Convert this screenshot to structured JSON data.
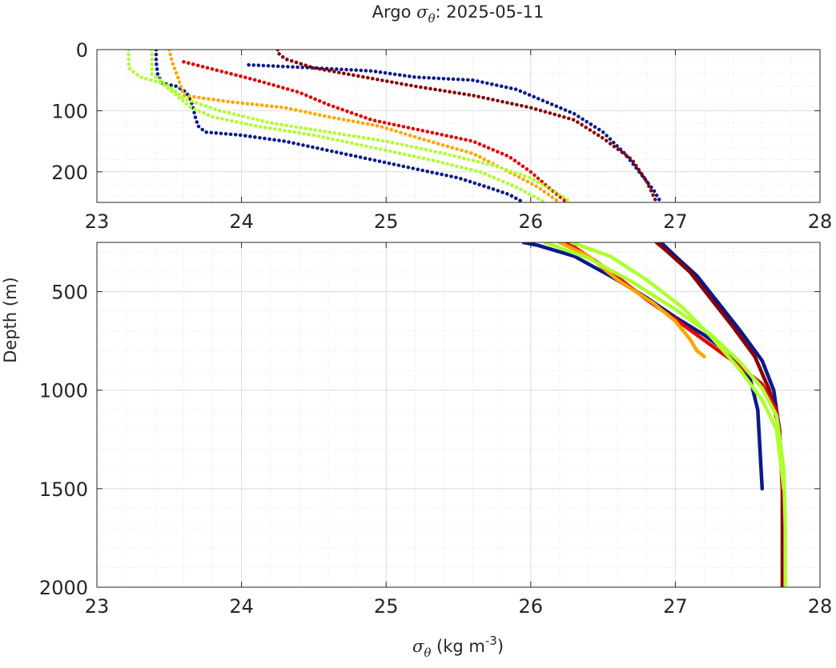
{
  "chart_data": {
    "type": "scatter",
    "title": {
      "prefix": "Argo ",
      "symbol": "σ",
      "subscript": "θ",
      "suffix": ": 2025-05-11"
    },
    "xlabel": {
      "symbol": "σ",
      "subscript": "θ",
      "text": " (kg m",
      "superscript": "-3",
      "close": ")"
    },
    "ylabel": "Depth (m)",
    "grid": true,
    "panels": [
      {
        "name": "upper",
        "xlim": [
          23,
          28
        ],
        "ylim": [
          0,
          250
        ],
        "y_reversed": true,
        "xticks": [
          "23",
          "24",
          "25",
          "26",
          "27",
          "28"
        ],
        "yticks": [
          "0",
          "100",
          "200"
        ]
      },
      {
        "name": "lower",
        "xlim": [
          23,
          28
        ],
        "ylim": [
          250,
          2000
        ],
        "y_reversed": true,
        "xticks": [
          "23",
          "24",
          "25",
          "26",
          "27",
          "28"
        ],
        "yticks": [
          "500",
          "1000",
          "1500",
          "2000"
        ]
      }
    ],
    "series": [
      {
        "color": "#0a1a8c",
        "points": [
          [
            23.41,
            0
          ],
          [
            23.41,
            20
          ],
          [
            23.42,
            40
          ],
          [
            23.45,
            55
          ],
          [
            23.55,
            60
          ],
          [
            23.62,
            70
          ],
          [
            23.66,
            90
          ],
          [
            23.68,
            110
          ],
          [
            23.7,
            125
          ],
          [
            23.75,
            135
          ],
          [
            24.0,
            140
          ],
          [
            24.3,
            150
          ],
          [
            24.6,
            165
          ],
          [
            24.9,
            180
          ],
          [
            25.2,
            195
          ],
          [
            25.5,
            210
          ],
          [
            25.7,
            225
          ],
          [
            25.85,
            237
          ],
          [
            25.95,
            250
          ]
        ]
      },
      {
        "color": "#0a1a8c",
        "points": [
          [
            25.95,
            250
          ],
          [
            26.05,
            265
          ],
          [
            26.3,
            320
          ],
          [
            26.55,
            420
          ],
          [
            26.8,
            530
          ],
          [
            27.0,
            630
          ],
          [
            27.2,
            720
          ],
          [
            27.4,
            830
          ],
          [
            27.52,
            950
          ],
          [
            27.57,
            1100
          ],
          [
            27.6,
            1500
          ]
        ]
      },
      {
        "color": "#0a1a8c",
        "points": [
          [
            24.05,
            25
          ],
          [
            24.5,
            30
          ],
          [
            24.9,
            35
          ],
          [
            25.2,
            45
          ],
          [
            25.6,
            50
          ],
          [
            25.9,
            65
          ],
          [
            26.1,
            85
          ],
          [
            26.3,
            105
          ],
          [
            26.5,
            135
          ],
          [
            26.65,
            170
          ],
          [
            26.75,
            200
          ],
          [
            26.85,
            230
          ],
          [
            26.9,
            250
          ]
        ]
      },
      {
        "color": "#0a1a8c",
        "points": [
          [
            26.9,
            250
          ],
          [
            27.0,
            320
          ],
          [
            27.15,
            420
          ],
          [
            27.3,
            560
          ],
          [
            27.45,
            700
          ],
          [
            27.6,
            850
          ],
          [
            27.68,
            1000
          ],
          [
            27.72,
            1200
          ],
          [
            27.74,
            1500
          ]
        ]
      },
      {
        "color": "#8b0000",
        "points": [
          [
            24.25,
            0
          ],
          [
            24.25,
            5
          ],
          [
            24.3,
            15
          ],
          [
            24.5,
            30
          ],
          [
            24.85,
            45
          ],
          [
            25.2,
            60
          ],
          [
            25.6,
            75
          ],
          [
            26.0,
            95
          ],
          [
            26.3,
            115
          ],
          [
            26.5,
            145
          ],
          [
            26.7,
            180
          ],
          [
            26.8,
            215
          ],
          [
            26.87,
            250
          ]
        ]
      },
      {
        "color": "#8b0000",
        "points": [
          [
            26.87,
            250
          ],
          [
            26.95,
            300
          ],
          [
            27.1,
            400
          ],
          [
            27.25,
            540
          ],
          [
            27.4,
            680
          ],
          [
            27.55,
            830
          ],
          [
            27.65,
            1000
          ],
          [
            27.72,
            1200
          ],
          [
            27.74,
            1500
          ],
          [
            27.74,
            1800
          ],
          [
            27.74,
            2000
          ]
        ]
      },
      {
        "color": "#e60000",
        "points": [
          [
            23.6,
            20
          ],
          [
            23.85,
            35
          ],
          [
            24.1,
            50
          ],
          [
            24.4,
            70
          ],
          [
            24.6,
            90
          ],
          [
            24.9,
            115
          ],
          [
            25.3,
            135
          ],
          [
            25.6,
            150
          ],
          [
            25.85,
            175
          ],
          [
            26.0,
            200
          ],
          [
            26.12,
            225
          ],
          [
            26.25,
            250
          ]
        ]
      },
      {
        "color": "#e60000",
        "points": [
          [
            26.25,
            250
          ],
          [
            26.5,
            370
          ],
          [
            26.8,
            540
          ],
          [
            27.0,
            640
          ],
          [
            27.15,
            720
          ],
          [
            27.3,
            800
          ],
          [
            27.45,
            880
          ],
          [
            27.6,
            970
          ],
          [
            27.7,
            1100
          ],
          [
            27.73,
            1300
          ],
          [
            27.74,
            1500
          ]
        ]
      },
      {
        "color": "#ffa500",
        "points": [
          [
            23.5,
            0
          ],
          [
            23.52,
            20
          ],
          [
            23.56,
            45
          ],
          [
            23.6,
            75
          ],
          [
            23.9,
            85
          ],
          [
            24.3,
            95
          ],
          [
            24.6,
            110
          ],
          [
            24.95,
            125
          ],
          [
            25.3,
            150
          ],
          [
            25.6,
            170
          ],
          [
            25.85,
            200
          ],
          [
            26.05,
            225
          ],
          [
            26.2,
            250
          ]
        ]
      },
      {
        "color": "#ffa500",
        "points": [
          [
            26.2,
            250
          ],
          [
            26.4,
            320
          ],
          [
            26.6,
            440
          ],
          [
            26.85,
            560
          ],
          [
            27.0,
            650
          ],
          [
            27.1,
            740
          ],
          [
            27.15,
            800
          ],
          [
            27.2,
            830
          ]
        ]
      },
      {
        "color": "#adff2f",
        "points": [
          [
            23.22,
            0
          ],
          [
            23.22,
            30
          ],
          [
            23.3,
            45
          ],
          [
            23.45,
            55
          ],
          [
            23.55,
            75
          ],
          [
            23.65,
            95
          ],
          [
            23.8,
            110
          ],
          [
            24.1,
            125
          ],
          [
            24.5,
            140
          ],
          [
            24.9,
            160
          ],
          [
            25.3,
            180
          ],
          [
            25.65,
            200
          ],
          [
            25.9,
            225
          ],
          [
            26.1,
            250
          ]
        ]
      },
      {
        "color": "#adff2f",
        "points": [
          [
            23.38,
            0
          ],
          [
            23.38,
            40
          ],
          [
            23.5,
            60
          ],
          [
            23.6,
            80
          ],
          [
            23.85,
            100
          ],
          [
            24.2,
            120
          ],
          [
            24.6,
            135
          ],
          [
            25.0,
            150
          ],
          [
            25.4,
            170
          ],
          [
            25.75,
            190
          ],
          [
            26.0,
            210
          ],
          [
            26.15,
            230
          ],
          [
            26.28,
            250
          ]
        ]
      },
      {
        "color": "#adff2f",
        "points": [
          [
            26.1,
            250
          ],
          [
            26.4,
            330
          ],
          [
            26.7,
            450
          ],
          [
            27.0,
            590
          ],
          [
            27.25,
            720
          ],
          [
            27.45,
            860
          ],
          [
            27.6,
            990
          ],
          [
            27.7,
            1130
          ],
          [
            27.75,
            1400
          ],
          [
            27.76,
            1700
          ],
          [
            27.76,
            2000
          ]
        ]
      },
      {
        "color": "#adff2f",
        "points": [
          [
            26.28,
            250
          ],
          [
            26.55,
            320
          ],
          [
            26.8,
            440
          ],
          [
            27.05,
            580
          ],
          [
            27.25,
            730
          ],
          [
            27.45,
            900
          ],
          [
            27.6,
            1050
          ],
          [
            27.7,
            1200
          ],
          [
            27.75,
            1500
          ]
        ]
      }
    ]
  }
}
